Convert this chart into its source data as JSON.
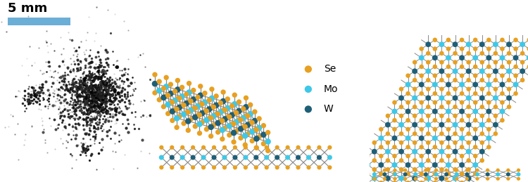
{
  "scale_bar_text": "5 mm",
  "scale_bar_color": "#6baed6",
  "legend": [
    {
      "label": "Se",
      "color": "#E8A020"
    },
    {
      "label": "Mo",
      "color": "#3EC8E8"
    },
    {
      "label": "W",
      "color": "#1E5F78"
    }
  ],
  "color_Se": "#E8A020",
  "color_Mo": "#3EC8E8",
  "color_W": "#1E5F78",
  "color_bond": "#888888",
  "bg_color": "#ffffff",
  "fig_width": 7.5,
  "fig_height": 2.59,
  "dpi": 100
}
